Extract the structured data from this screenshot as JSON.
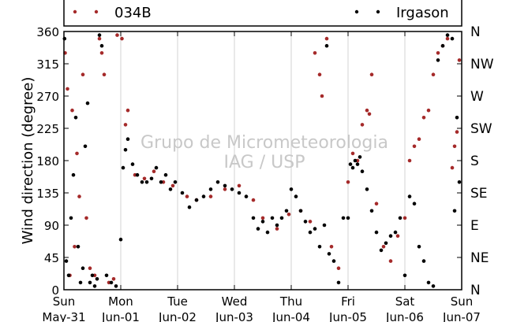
{
  "chart_data": {
    "type": "scatter",
    "title": "",
    "xlabel": "",
    "ylabel": "Wind direction (degree)",
    "watermark": [
      "Grupo de Micrometeorologia",
      "IAG / USP"
    ],
    "xlim": [
      "2015-05-31T00:00",
      "2015-06-07T00:00"
    ],
    "ylim": [
      0,
      360
    ],
    "grid": "vertical",
    "legend_position": "top",
    "x_ticks": [
      {
        "t": "2015-05-31T00:00",
        "day": "Sun",
        "date": "May-31"
      },
      {
        "t": "2015-06-01T00:00",
        "day": "Mon",
        "date": "Jun-01"
      },
      {
        "t": "2015-06-02T00:00",
        "day": "Tue",
        "date": "Jun-02"
      },
      {
        "t": "2015-06-03T00:00",
        "day": "Wed",
        "date": "Jun-03"
      },
      {
        "t": "2015-06-04T00:00",
        "day": "Thu",
        "date": "Jun-04"
      },
      {
        "t": "2015-06-05T00:00",
        "day": "Fri",
        "date": "Jun-05"
      },
      {
        "t": "2015-06-06T00:00",
        "day": "Sat",
        "date": "Jun-06"
      },
      {
        "t": "2015-06-07T00:00",
        "day": "Sun",
        "date": "Jun-07"
      }
    ],
    "y_ticks": [
      0,
      45,
      90,
      135,
      180,
      225,
      270,
      315,
      360
    ],
    "y2_ticks": [
      {
        "value": 0,
        "label": "N"
      },
      {
        "value": 45,
        "label": "NE"
      },
      {
        "value": 90,
        "label": "E"
      },
      {
        "value": 135,
        "label": "SE"
      },
      {
        "value": 180,
        "label": "S"
      },
      {
        "value": 225,
        "label": "SW"
      },
      {
        "value": 270,
        "label": "W"
      },
      {
        "value": 315,
        "label": "NW"
      },
      {
        "value": 360,
        "label": "N"
      }
    ],
    "series": [
      {
        "name": "034B",
        "color": "#a52a2a",
        "points": [
          [
            "2015-05-31T00:30",
            330
          ],
          [
            "2015-05-31T01:30",
            280
          ],
          [
            "2015-05-31T02:30",
            20
          ],
          [
            "2015-05-31T03:30",
            250
          ],
          [
            "2015-05-31T04:30",
            60
          ],
          [
            "2015-05-31T05:30",
            190
          ],
          [
            "2015-05-31T06:30",
            130
          ],
          [
            "2015-05-31T08:00",
            300
          ],
          [
            "2015-05-31T09:30",
            100
          ],
          [
            "2015-05-31T11:00",
            30
          ],
          [
            "2015-05-31T13:00",
            20
          ],
          [
            "2015-05-31T15:00",
            350
          ],
          [
            "2015-05-31T16:00",
            330
          ],
          [
            "2015-05-31T17:00",
            300
          ],
          [
            "2015-05-31T19:00",
            10
          ],
          [
            "2015-05-31T21:00",
            15
          ],
          [
            "2015-05-31T22:30",
            355
          ],
          [
            "2015-06-01T00:30",
            350
          ],
          [
            "2015-06-01T02:00",
            230
          ],
          [
            "2015-06-01T03:00",
            250
          ],
          [
            "2015-06-01T06:00",
            160
          ],
          [
            "2015-06-01T10:00",
            155
          ],
          [
            "2015-06-01T14:00",
            165
          ],
          [
            "2015-06-01T18:00",
            150
          ],
          [
            "2015-06-01T22:00",
            145
          ],
          [
            "2015-06-02T04:00",
            130
          ],
          [
            "2015-06-02T08:00",
            125
          ],
          [
            "2015-06-02T14:00",
            130
          ],
          [
            "2015-06-02T20:00",
            140
          ],
          [
            "2015-06-03T02:00",
            145
          ],
          [
            "2015-06-03T08:00",
            125
          ],
          [
            "2015-06-03T12:00",
            100
          ],
          [
            "2015-06-03T18:00",
            85
          ],
          [
            "2015-06-03T23:00",
            105
          ],
          [
            "2015-06-04T04:00",
            110
          ],
          [
            "2015-06-04T08:00",
            95
          ],
          [
            "2015-06-04T10:00",
            330
          ],
          [
            "2015-06-04T12:00",
            300
          ],
          [
            "2015-06-04T13:00",
            270
          ],
          [
            "2015-06-04T15:00",
            350
          ],
          [
            "2015-06-04T17:00",
            60
          ],
          [
            "2015-06-04T20:00",
            30
          ],
          [
            "2015-06-05T00:00",
            150
          ],
          [
            "2015-06-05T02:00",
            190
          ],
          [
            "2015-06-05T04:00",
            180
          ],
          [
            "2015-06-05T06:00",
            230
          ],
          [
            "2015-06-05T08:00",
            250
          ],
          [
            "2015-06-05T09:00",
            245
          ],
          [
            "2015-06-05T10:00",
            300
          ],
          [
            "2015-06-05T12:00",
            120
          ],
          [
            "2015-06-05T15:00",
            60
          ],
          [
            "2015-06-05T18:00",
            40
          ],
          [
            "2015-06-05T21:00",
            75
          ],
          [
            "2015-06-06T00:00",
            100
          ],
          [
            "2015-06-06T02:00",
            180
          ],
          [
            "2015-06-06T04:00",
            200
          ],
          [
            "2015-06-06T06:00",
            210
          ],
          [
            "2015-06-06T08:00",
            240
          ],
          [
            "2015-06-06T10:00",
            250
          ],
          [
            "2015-06-06T12:00",
            300
          ],
          [
            "2015-06-06T14:00",
            330
          ],
          [
            "2015-06-06T16:00",
            340
          ],
          [
            "2015-06-06T18:00",
            350
          ],
          [
            "2015-06-06T20:00",
            170
          ],
          [
            "2015-06-06T21:00",
            200
          ],
          [
            "2015-06-06T22:00",
            220
          ],
          [
            "2015-06-06T23:00",
            320
          ]
        ]
      },
      {
        "name": "Irgason",
        "color": "#000000",
        "points": [
          [
            "2015-05-31T00:15",
            350
          ],
          [
            "2015-05-31T01:00",
            40
          ],
          [
            "2015-05-31T02:00",
            20
          ],
          [
            "2015-05-31T03:00",
            100
          ],
          [
            "2015-05-31T04:00",
            160
          ],
          [
            "2015-05-31T05:00",
            240
          ],
          [
            "2015-05-31T06:00",
            60
          ],
          [
            "2015-05-31T07:00",
            10
          ],
          [
            "2015-05-31T08:00",
            30
          ],
          [
            "2015-05-31T09:00",
            200
          ],
          [
            "2015-05-31T10:00",
            260
          ],
          [
            "2015-05-31T11:00",
            10
          ],
          [
            "2015-05-31T12:00",
            20
          ],
          [
            "2015-05-31T13:00",
            5
          ],
          [
            "2015-05-31T14:00",
            15
          ],
          [
            "2015-05-31T15:00",
            355
          ],
          [
            "2015-05-31T16:00",
            340
          ],
          [
            "2015-05-31T18:00",
            20
          ],
          [
            "2015-05-31T20:00",
            10
          ],
          [
            "2015-05-31T22:00",
            5
          ],
          [
            "2015-06-01T00:00",
            70
          ],
          [
            "2015-06-01T01:00",
            170
          ],
          [
            "2015-06-01T02:00",
            195
          ],
          [
            "2015-06-01T03:00",
            210
          ],
          [
            "2015-06-01T05:00",
            175
          ],
          [
            "2015-06-01T07:00",
            160
          ],
          [
            "2015-06-01T09:00",
            150
          ],
          [
            "2015-06-01T11:00",
            150
          ],
          [
            "2015-06-01T13:00",
            155
          ],
          [
            "2015-06-01T15:00",
            170
          ],
          [
            "2015-06-01T17:00",
            150
          ],
          [
            "2015-06-01T19:00",
            160
          ],
          [
            "2015-06-01T21:00",
            140
          ],
          [
            "2015-06-01T23:00",
            150
          ],
          [
            "2015-06-02T02:00",
            135
          ],
          [
            "2015-06-02T05:00",
            115
          ],
          [
            "2015-06-02T08:00",
            125
          ],
          [
            "2015-06-02T11:00",
            130
          ],
          [
            "2015-06-02T14:00",
            140
          ],
          [
            "2015-06-02T17:00",
            150
          ],
          [
            "2015-06-02T20:00",
            145
          ],
          [
            "2015-06-02T23:00",
            140
          ],
          [
            "2015-06-03T02:00",
            135
          ],
          [
            "2015-06-03T05:00",
            130
          ],
          [
            "2015-06-03T08:00",
            100
          ],
          [
            "2015-06-03T10:00",
            85
          ],
          [
            "2015-06-03T12:00",
            95
          ],
          [
            "2015-06-03T14:00",
            80
          ],
          [
            "2015-06-03T16:00",
            100
          ],
          [
            "2015-06-03T18:00",
            90
          ],
          [
            "2015-06-03T20:00",
            100
          ],
          [
            "2015-06-03T22:00",
            110
          ],
          [
            "2015-06-04T00:00",
            140
          ],
          [
            "2015-06-04T02:00",
            130
          ],
          [
            "2015-06-04T04:00",
            110
          ],
          [
            "2015-06-04T06:00",
            95
          ],
          [
            "2015-06-04T08:00",
            80
          ],
          [
            "2015-06-04T10:00",
            85
          ],
          [
            "2015-06-04T12:00",
            60
          ],
          [
            "2015-06-04T14:00",
            90
          ],
          [
            "2015-06-04T15:00",
            340
          ],
          [
            "2015-06-04T16:00",
            50
          ],
          [
            "2015-06-04T18:00",
            40
          ],
          [
            "2015-06-04T20:00",
            10
          ],
          [
            "2015-06-04T22:00",
            100
          ],
          [
            "2015-06-05T00:00",
            100
          ],
          [
            "2015-06-05T01:00",
            175
          ],
          [
            "2015-06-05T02:00",
            170
          ],
          [
            "2015-06-05T03:00",
            180
          ],
          [
            "2015-06-05T04:00",
            175
          ],
          [
            "2015-06-05T05:00",
            185
          ],
          [
            "2015-06-05T06:00",
            165
          ],
          [
            "2015-06-05T08:00",
            140
          ],
          [
            "2015-06-05T10:00",
            110
          ],
          [
            "2015-06-05T12:00",
            80
          ],
          [
            "2015-06-05T14:00",
            55
          ],
          [
            "2015-06-05T16:00",
            65
          ],
          [
            "2015-06-05T18:00",
            75
          ],
          [
            "2015-06-05T20:00",
            80
          ],
          [
            "2015-06-05T22:00",
            100
          ],
          [
            "2015-06-06T00:00",
            20
          ],
          [
            "2015-06-06T02:00",
            130
          ],
          [
            "2015-06-06T04:00",
            120
          ],
          [
            "2015-06-06T06:00",
            60
          ],
          [
            "2015-06-06T08:00",
            40
          ],
          [
            "2015-06-06T10:00",
            10
          ],
          [
            "2015-06-06T12:00",
            5
          ],
          [
            "2015-06-06T14:00",
            320
          ],
          [
            "2015-06-06T16:00",
            340
          ],
          [
            "2015-06-06T18:00",
            355
          ],
          [
            "2015-06-06T20:00",
            350
          ],
          [
            "2015-06-06T21:00",
            110
          ],
          [
            "2015-06-06T22:00",
            240
          ],
          [
            "2015-06-06T23:00",
            150
          ]
        ]
      }
    ]
  }
}
